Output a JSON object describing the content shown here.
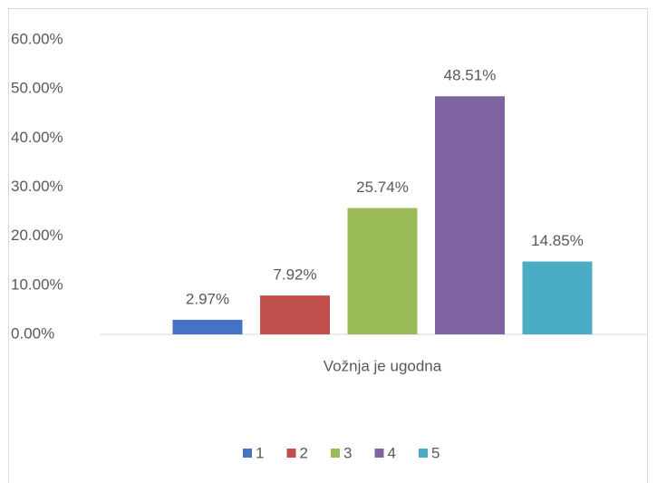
{
  "chart_data": {
    "type": "bar",
    "categories": [
      "Vožnja je ugodna"
    ],
    "series": [
      {
        "name": "1",
        "color": "#4472c4",
        "values": [
          2.97
        ],
        "value_labels": [
          "2.97%"
        ]
      },
      {
        "name": "2",
        "color": "#c0504d",
        "values": [
          7.92
        ],
        "value_labels": [
          "7.92%"
        ]
      },
      {
        "name": "3",
        "color": "#9bbb59",
        "values": [
          25.74
        ],
        "value_labels": [
          "25.74%"
        ]
      },
      {
        "name": "4",
        "color": "#8064a2",
        "values": [
          48.51
        ],
        "value_labels": [
          "48.51%"
        ]
      },
      {
        "name": "5",
        "color": "#4bacc6",
        "values": [
          14.85
        ],
        "value_labels": [
          "14.85%"
        ]
      }
    ],
    "ylim": [
      0,
      60
    ],
    "yticks": [
      {
        "value": 0,
        "label": "0.00%"
      },
      {
        "value": 10,
        "label": "10.00%"
      },
      {
        "value": 20,
        "label": "20.00%"
      },
      {
        "value": 30,
        "label": "30.00%"
      },
      {
        "value": 40,
        "label": "40.00%"
      },
      {
        "value": 50,
        "label": "50.00%"
      },
      {
        "value": 60,
        "label": "60.00%"
      }
    ],
    "grid": false,
    "legend": "bottom"
  }
}
